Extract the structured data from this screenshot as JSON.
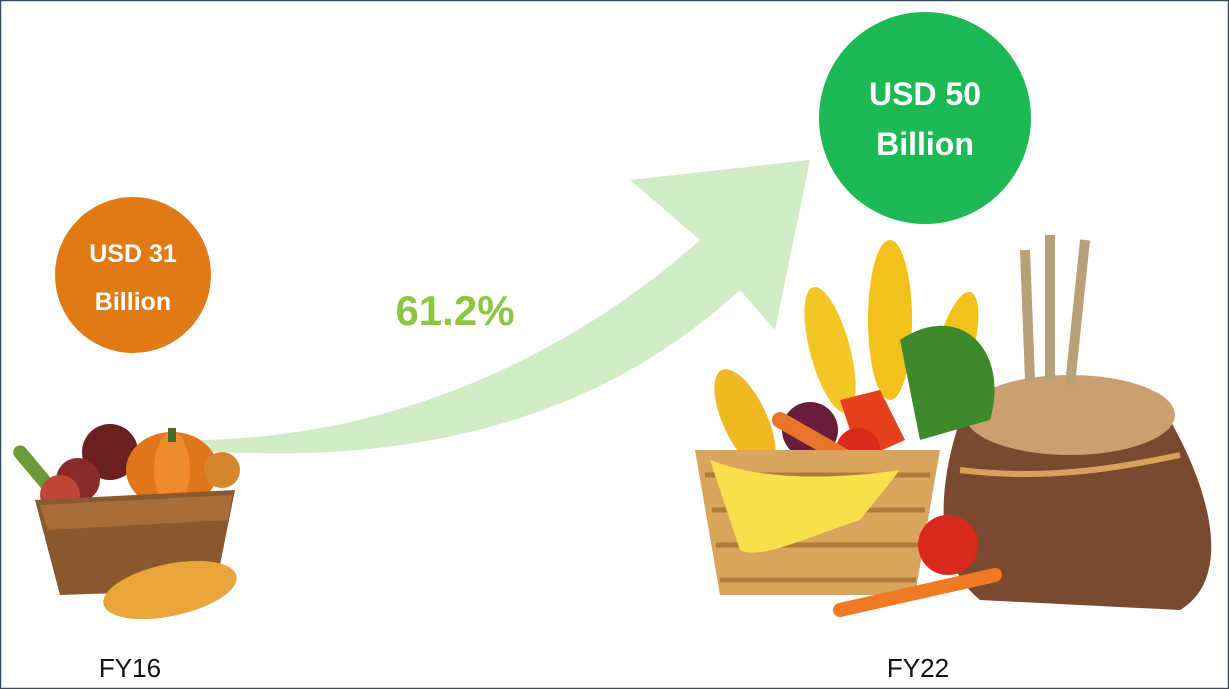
{
  "circles": [
    {
      "lines": [
        "USD 31",
        "Billion"
      ]
    },
    {
      "lines": [
        "USD 50",
        "Billion"
      ]
    }
  ],
  "growth": "61.2%",
  "years": [
    "FY16",
    "FY22"
  ]
}
